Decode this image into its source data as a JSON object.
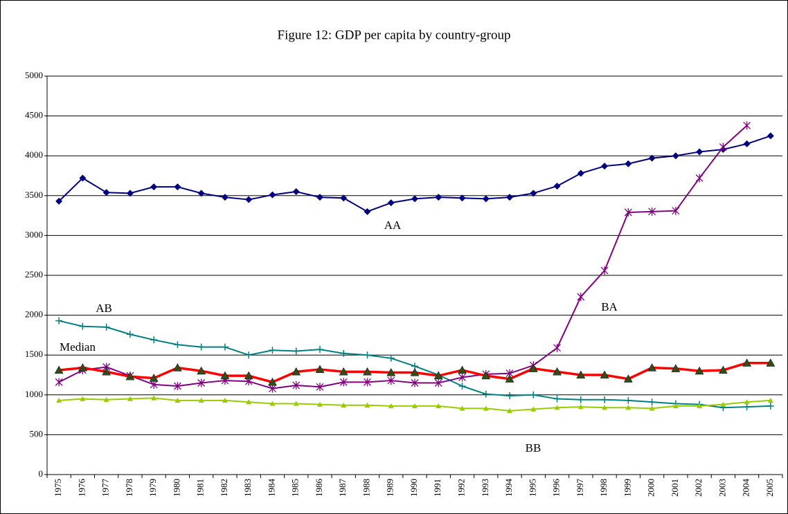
{
  "chart_data": {
    "type": "line",
    "title": "Figure 12: GDP per capita by country-group",
    "categories": [
      "1975",
      "1976",
      "1977",
      "1978",
      "1979",
      "1980",
      "1981",
      "1982",
      "1983",
      "1984",
      "1985",
      "1986",
      "1987",
      "1988",
      "1989",
      "1990",
      "1991",
      "1992",
      "1993",
      "1994",
      "1995",
      "1996",
      "1997",
      "1998",
      "1999",
      "2000",
      "2001",
      "2002",
      "2003",
      "2004",
      "2005"
    ],
    "ylim": [
      0,
      5000
    ],
    "yticks": [
      0,
      500,
      1000,
      1500,
      2000,
      2500,
      3000,
      3500,
      4000,
      4500,
      5000
    ],
    "grid": true,
    "series": [
      {
        "name": "AA",
        "color": "#000080",
        "marker": "diamond",
        "values": [
          3430,
          3720,
          3540,
          3530,
          3610,
          3610,
          3530,
          3480,
          3450,
          3510,
          3550,
          3480,
          3470,
          3300,
          3410,
          3460,
          3480,
          3470,
          3460,
          3480,
          3530,
          3620,
          3780,
          3870,
          3900,
          3970,
          4000,
          4050,
          4080,
          4150,
          4250
        ]
      },
      {
        "name": "AB",
        "color": "#008080",
        "marker": "plus",
        "values": [
          1930,
          1860,
          1850,
          1760,
          1690,
          1630,
          1600,
          1600,
          1500,
          1560,
          1550,
          1570,
          1520,
          1500,
          1460,
          1360,
          1250,
          1110,
          1010,
          990,
          1000,
          950,
          940,
          940,
          930,
          910,
          890,
          880,
          840,
          850,
          860
        ]
      },
      {
        "name": "BA",
        "color": "#800080",
        "marker": "star",
        "values": [
          1160,
          1310,
          1350,
          1240,
          1130,
          1110,
          1150,
          1180,
          1170,
          1080,
          1120,
          1100,
          1160,
          1160,
          1180,
          1150,
          1150,
          1220,
          1260,
          1270,
          1370,
          1590,
          2230,
          2560,
          3290,
          3300,
          3310,
          3720,
          4110,
          4380,
          null
        ]
      },
      {
        "name": "Median",
        "color": "#ff0000",
        "marker": "triangle",
        "marker_color": "#334d1a",
        "values": [
          1310,
          1340,
          1290,
          1230,
          1210,
          1340,
          1300,
          1240,
          1240,
          1160,
          1290,
          1320,
          1290,
          1290,
          1280,
          1280,
          1240,
          1310,
          1240,
          1200,
          1330,
          1290,
          1250,
          1250,
          1200,
          1340,
          1330,
          1300,
          1310,
          1400,
          1400
        ]
      },
      {
        "name": "BB",
        "color": "#99cc00",
        "marker": "triangle",
        "values": [
          930,
          950,
          940,
          950,
          960,
          930,
          930,
          930,
          910,
          890,
          890,
          880,
          870,
          870,
          860,
          860,
          860,
          830,
          830,
          800,
          820,
          840,
          850,
          840,
          840,
          830,
          860,
          860,
          880,
          910,
          930
        ]
      }
    ]
  }
}
